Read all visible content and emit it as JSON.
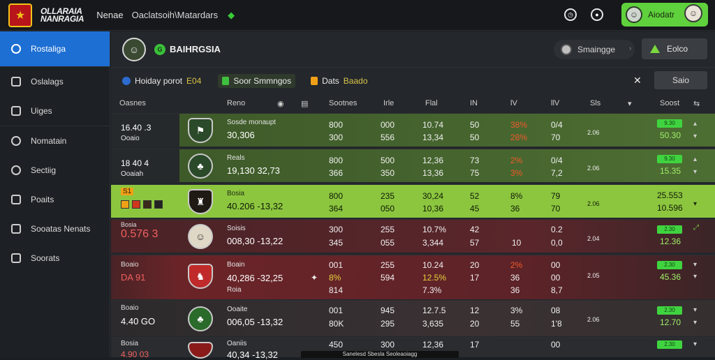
{
  "app": {
    "brand_line1": "OLLARAIA",
    "brand_line2": "NANRAGIA",
    "top_label": "Nenae",
    "top_text": "Oaclatsoih\\Matardars",
    "user_name": "Aiodatr"
  },
  "sidebar": {
    "items": [
      {
        "label": "Rostaliga",
        "icon": "shield-icon",
        "active": true
      },
      {
        "label": "Oslalags",
        "icon": "flag-icon"
      },
      {
        "label": "Uiges",
        "icon": "trophy-icon"
      },
      {
        "label": "Nomatain",
        "icon": "globe-icon"
      },
      {
        "label": "Sectiig",
        "icon": "gear-icon"
      },
      {
        "label": "Poaits",
        "icon": "square-icon"
      },
      {
        "label": "Sooatas Nenats",
        "icon": "mail-icon"
      },
      {
        "label": "Soorats",
        "icon": "chat-icon"
      }
    ]
  },
  "header": {
    "title": "BAIHRGSIA",
    "badge": "G",
    "search_label": "Smaingge",
    "button_label": "Eolco"
  },
  "filters": {
    "chip1_label": "Hoiday porot",
    "chip1_value": "E04",
    "chip2_label": "Soor Smmngos",
    "chip3_label": "Dats",
    "chip3_value": "Baado",
    "button": "Saio"
  },
  "table": {
    "headers": [
      "Oasnes",
      "Reno",
      "Sootnes",
      "Irle",
      "Flal",
      "IN",
      "lV",
      "llV",
      "Sls",
      "Soost"
    ],
    "rows": [
      {
        "name1": "16.40 .3",
        "name2": "Ooaio",
        "team_label": "Sosde monaupt",
        "team_score": "30,306",
        "c1a": "800",
        "c1b": "300",
        "c2a": "000",
        "c2b": "556",
        "c3a": "10.74",
        "c3b": "13,34",
        "c4a": "50",
        "c4b": "50",
        "c5a": "38%",
        "c5b": "28%",
        "c6a": "0/4",
        "c6b": "70",
        "c7": "2.06",
        "pill": "9.30",
        "right": "50.30"
      },
      {
        "name1": "18 40 4",
        "name2": "Ooaiah",
        "team_label": "Reals",
        "team_score": "19,130 32,73",
        "c1a": "800",
        "c1b": "366",
        "c2a": "500",
        "c2b": "350",
        "c3a": "12,36",
        "c3b": "13,36",
        "c4a": "73",
        "c4b": "75",
        "c5a": "2%",
        "c5b": "3%",
        "c6a": "0/4",
        "c6b": "7,2",
        "c7": "2.06",
        "pill": "9.30",
        "right": "15.35"
      },
      {
        "name1": "S1",
        "name2": "",
        "team_label": "Bosia",
        "team_score": "40.206 -13,32",
        "c1a": "800",
        "c1b": "364",
        "c2a": "235",
        "c2b": "050",
        "c3a": "30,24",
        "c3b": "10,36",
        "c4a": "52",
        "c4b": "45",
        "c5a": "8%",
        "c5b": "36",
        "c6a": "79",
        "c6b": "70",
        "c7": "2.06",
        "pill": "",
        "right": "25.553",
        "right2": "10.596"
      },
      {
        "name1": "0.576 3",
        "name2": "Bosia",
        "team_label": "Soisis",
        "team_score": "008,30 -13,22",
        "c1a": "300",
        "c1b": "345",
        "c2a": "255",
        "c2b": "055",
        "c3a": "10.7%",
        "c3b": "3,344",
        "c4a": "42",
        "c4b": "57",
        "c5a": "",
        "c5b": "10",
        "c6a": "0.2",
        "c6b": "0,0",
        "c7": "2.04",
        "pill": "2.30",
        "right": "12.36"
      },
      {
        "name1": "DA 91",
        "name2": "Boaio",
        "team_label": "Boain",
        "team_score": "40,286 -32,25",
        "c1a": "001",
        "c1b": "8%",
        "c2a": "255",
        "c2b": "594",
        "c3a": "10.24",
        "c3b": "12.5%",
        "c4a": "20",
        "c4b": "17",
        "c5a": "2%",
        "c5b": "36",
        "c6a": "00",
        "c6b": "00",
        "c7": "2.05",
        "pill": "2.30",
        "right": "45.36",
        "c1c": "814",
        "c3c": "7.3%",
        "c5c": "36",
        "c6c": "8,7",
        "team_extra": "Roia"
      },
      {
        "name1": "4.40 GO",
        "name2": "Boaio",
        "team_label": "Ooaite",
        "team_score": "006,05 -13,32",
        "c1a": "001",
        "c1b": "80K",
        "c2a": "945",
        "c2b": "295",
        "c3a": "12.7.5",
        "c3b": "3,635",
        "c4a": "12",
        "c4b": "20",
        "c5a": "3%",
        "c5b": "55",
        "c6a": "08",
        "c6b": "1'8",
        "c7": "2.06",
        "pill": "2.30",
        "right": "12.70"
      },
      {
        "name1": "4.90 03",
        "name2": "Bosia",
        "team_label": "Oaniis",
        "team_score": "40,34 -13,32",
        "c1a": "450",
        "c1b": "",
        "c2a": "300",
        "c2b": "",
        "c3a": "12,36",
        "c3b": "",
        "c4a": "17",
        "c4b": "",
        "c5a": "",
        "c5b": "",
        "c6a": "00",
        "c6b": "",
        "c7": "",
        "pill": "2.30",
        "right": ""
      }
    ]
  },
  "footer": {
    "status_text": "Sanelesd Sbesla Seoleaoiagg"
  },
  "colors": {
    "active_blue": "#1d6fd3",
    "accent_green": "#5fd13c",
    "row_green": "#4a6b2e",
    "row_highlight": "#8bc34a",
    "row_red": "#6b2428"
  }
}
